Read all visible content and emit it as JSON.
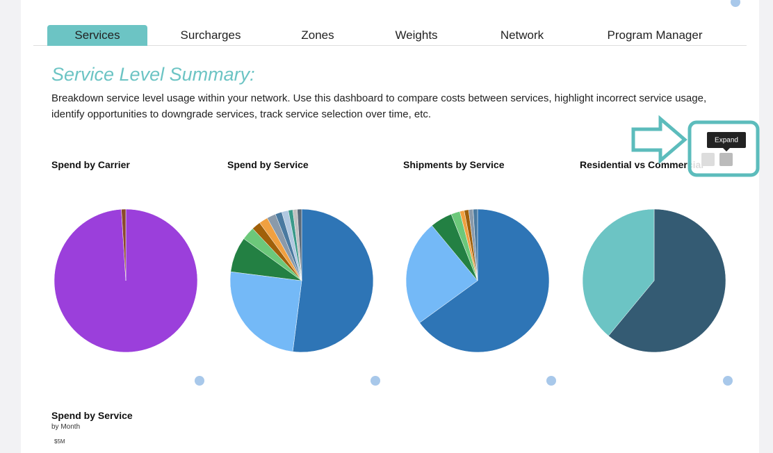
{
  "tabs": [
    "Services",
    "Surcharges",
    "Zones",
    "Weights",
    "Network",
    "Program Manager"
  ],
  "summary": {
    "title": "Service Level Summary:",
    "text": "Breakdown service level usage within your network. Use this dashboard to compare costs between services, highlight incorrect service usage, identify opportunities to downgrade services, track service selection over time, etc."
  },
  "tooltip": "Expand",
  "chart_data": [
    {
      "type": "pie",
      "title": "Spend by Carrier",
      "values": [
        99,
        1
      ],
      "colors": [
        "#9b3fdb",
        "#8b4a2b"
      ]
    },
    {
      "type": "pie",
      "title": "Spend by Service",
      "values": [
        52,
        25,
        8,
        3,
        2,
        2,
        2,
        1.5,
        1.5,
        1,
        1,
        1
      ],
      "colors": [
        "#2e75b6",
        "#74b9f7",
        "#238043",
        "#6cc87a",
        "#a0600a",
        "#f0a040",
        "#8a9aaa",
        "#4a7aa0",
        "#b0c8e0",
        "#3a9a8a",
        "#c0c0c0",
        "#5a6a7a"
      ]
    },
    {
      "type": "pie",
      "title": "Shipments by Service",
      "values": [
        65,
        24,
        5,
        2,
        1,
        1,
        1,
        1
      ],
      "colors": [
        "#2e75b6",
        "#74b9f7",
        "#238043",
        "#6cc87a",
        "#f0a040",
        "#a0600a",
        "#8a9aaa",
        "#4a7aa0"
      ]
    },
    {
      "type": "pie",
      "title": "Residential vs Commercial",
      "values": [
        61,
        39
      ],
      "colors": [
        "#345b73",
        "#6cc4c4"
      ]
    }
  ],
  "bottom_chart": {
    "title": "Spend by Service",
    "subtitle": "by Month",
    "yticks": [
      {
        "value": 5000000,
        "label": "$5M"
      }
    ]
  }
}
